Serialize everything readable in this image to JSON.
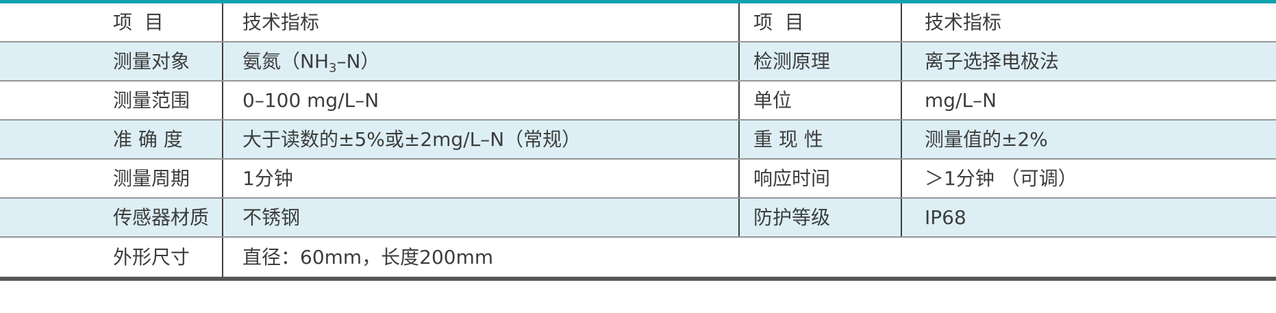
{
  "colors": {
    "top_bar": "#0fa2ae",
    "row_highlight": "#ddeff5",
    "bottom_bar": "#565656",
    "grid_line": "#969696",
    "column_line": "#3f3f3f",
    "text": "#3d3d3d"
  },
  "table": {
    "header": {
      "item": "项  目",
      "spec": "技术指标"
    },
    "rows": [
      {
        "item": "测量对象",
        "spec_pre": "氨氮（NH",
        "spec_sub": "3",
        "spec_post": "–N）",
        "item2": "检测原理",
        "spec2": "离子选择电极法"
      },
      {
        "item": "测量范围",
        "spec": "0–100 mg/L–N",
        "item2": "单位",
        "spec2": "mg/L–N"
      },
      {
        "item": "准 确 度",
        "spec": "大于读数的±5%或±2mg/L–N（常规）",
        "item2": "重 现 性",
        "spec2": "测量值的±2%"
      },
      {
        "item": "测量周期",
        "spec": "1分钟",
        "item2": "响应时间",
        "spec2": "＞1分钟 （可调）"
      },
      {
        "item": "传感器材质",
        "spec": "不锈钢",
        "item2": "防护等级",
        "spec2": "IP68"
      }
    ],
    "footer_row": {
      "item": "外形尺寸",
      "spec": "直径：60mm，长度200mm"
    }
  }
}
